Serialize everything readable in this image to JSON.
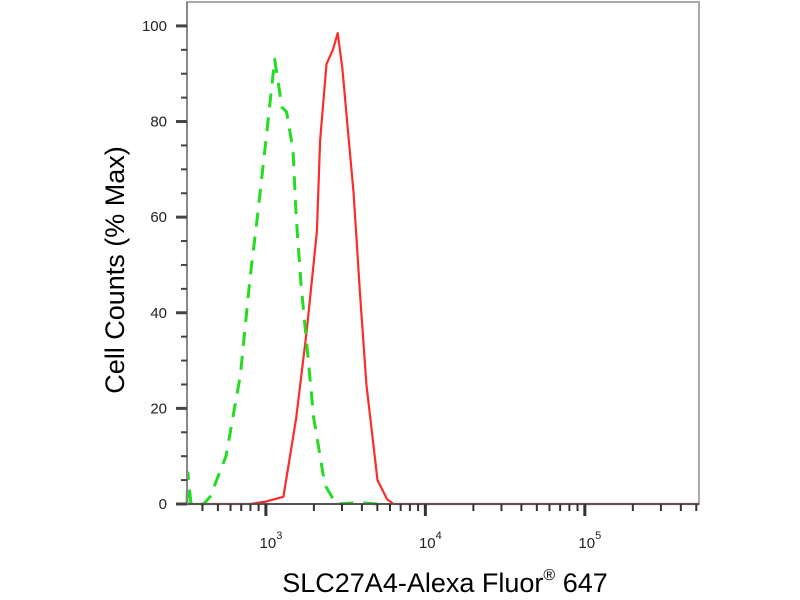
{
  "chart_data": {
    "type": "line",
    "title": "",
    "xlabel": "SLC27A4-Alexa Fluor",
    "xlabel_sup": "®",
    "xlabel_suffix": " 647",
    "ylabel": "Cell Counts (% Max)",
    "x_scale": "log",
    "xlim": [
      320,
      520000
    ],
    "ylim": [
      0,
      105
    ],
    "x_ticks": [
      {
        "base": "10",
        "exp": "3",
        "value": 1000
      },
      {
        "base": "10",
        "exp": "4",
        "value": 10000
      },
      {
        "base": "10",
        "exp": "5",
        "value": 100000
      }
    ],
    "y_ticks": [
      0,
      20,
      40,
      60,
      80,
      100
    ],
    "y_minor_step": 5,
    "grid": false,
    "legend": "none",
    "series": [
      {
        "color": "#ff2a2a",
        "style": "solid",
        "x": [
          320,
          794,
          1000,
          1288,
          1549,
          1799,
          2089,
          2188,
          2399,
          2630,
          2818,
          3020,
          3273,
          3548,
          3890,
          4266,
          5012,
          5754,
          6310,
          520000
        ],
        "y": [
          0,
          0,
          0.5,
          1.5,
          18,
          36,
          57,
          76,
          92,
          95,
          98.5,
          91,
          78,
          65,
          44,
          25,
          5,
          1,
          0,
          0
        ]
      },
      {
        "color": "#22dd22",
        "style": "dashed",
        "x": [
          320,
          324,
          339,
          407,
          447,
          562,
          692,
          794,
          891,
          1000,
          1135,
          1259,
          1349,
          1479,
          1549,
          1660,
          1820,
          1995,
          2344,
          2754,
          3890,
          5000
        ],
        "y": [
          0,
          6.5,
          0,
          0,
          1.5,
          10,
          27,
          47,
          61,
          76,
          93,
          83,
          82,
          74,
          60,
          46,
          32,
          18,
          4,
          0,
          0.3,
          0
        ]
      }
    ]
  }
}
